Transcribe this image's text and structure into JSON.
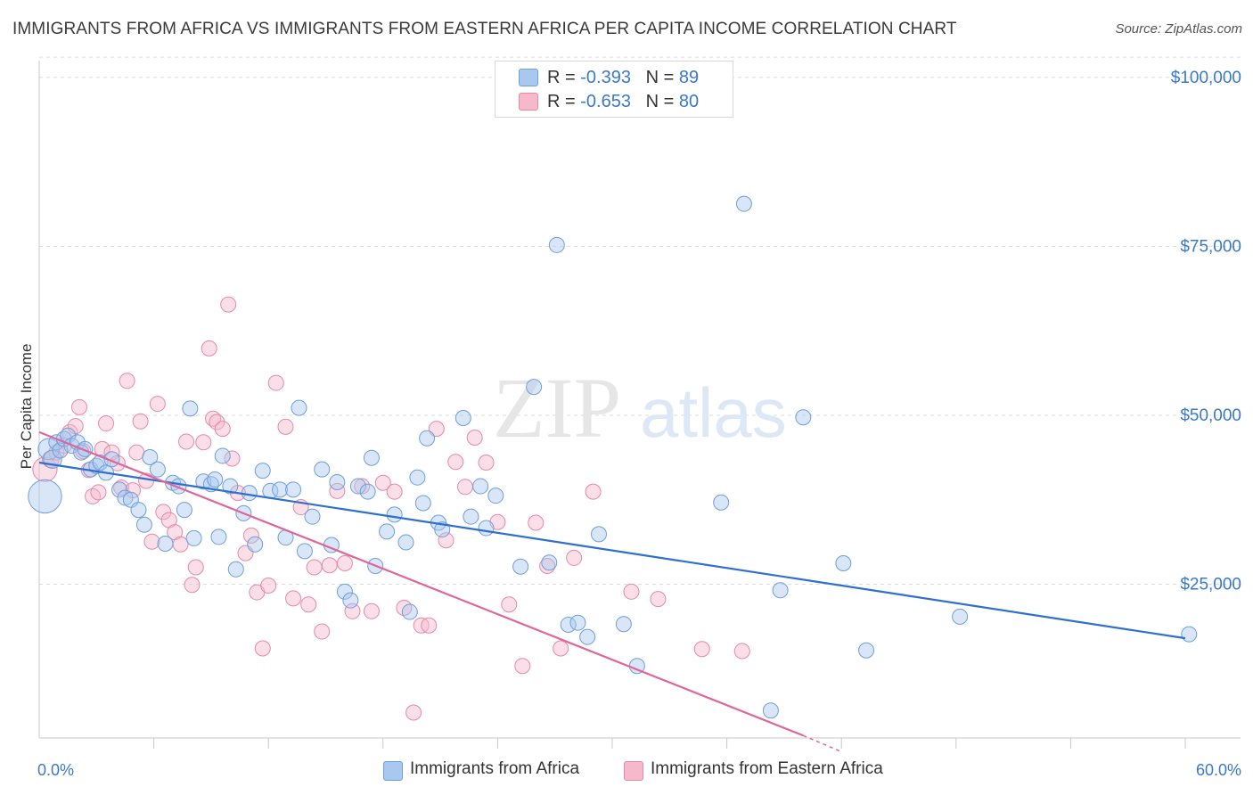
{
  "header": {
    "title": "IMMIGRANTS FROM AFRICA VS IMMIGRANTS FROM EASTERN AFRICA PER CAPITA INCOME CORRELATION CHART",
    "source": "Source: ZipAtlas.com"
  },
  "watermark": {
    "zip": "ZIP",
    "atlas": "atlas"
  },
  "legend": {
    "rows": [
      {
        "r_label": "R =",
        "r_value": "-0.393",
        "n_label": "N =",
        "n_value": "89",
        "color": "#a9c8f0"
      },
      {
        "r_label": "R =",
        "r_value": "-0.653",
        "n_label": "N =",
        "n_value": "80",
        "color": "#f6b9cc"
      }
    ]
  },
  "bottom_legend": {
    "africa": "Immigrants from Africa",
    "eastern": "Immigrants from Eastern Africa"
  },
  "colors": {
    "blue_fill": "#a9c8f0",
    "blue_stroke": "#6e9fd8",
    "blue_line": "#2f6fcf",
    "pink_fill": "#f6b9cc",
    "pink_stroke": "#e48aa7",
    "pink_line": "#e0669a",
    "tick_label": "#3a78c9"
  },
  "chart_data": {
    "type": "scatter",
    "title": "IMMIGRANTS FROM AFRICA VS IMMIGRANTS FROM EASTERN AFRICA PER CAPITA INCOME CORRELATION CHART",
    "xlabel": "",
    "ylabel": "Per Capita Income",
    "xlim": [
      0,
      60
    ],
    "ylim": [
      0,
      105000
    ],
    "x_tick_labels": [
      "0.0%",
      "60.0%"
    ],
    "y_ticks": [
      {
        "value": 25000,
        "label": "$25,000"
      },
      {
        "value": 50000,
        "label": "$50,000"
      },
      {
        "value": 75000,
        "label": "$75,000"
      },
      {
        "value": 100000,
        "label": "$100,000"
      }
    ],
    "grid": "horizontal dashed",
    "legend_position": "top-center",
    "series": [
      {
        "name": "Immigrants from Africa",
        "r": -0.393,
        "n": 89,
        "trend": {
          "x0": 0,
          "y0": 43000,
          "x1": 60,
          "y1": 17000
        },
        "points": [
          [
            0.3,
            38000,
            2.2
          ],
          [
            0.5,
            45000,
            1.4
          ],
          [
            0.7,
            43500,
            1.2
          ],
          [
            0.9,
            46000,
            1
          ],
          [
            1.1,
            44800,
            1
          ],
          [
            1.3,
            46500,
            1
          ],
          [
            1.5,
            47000,
            1
          ],
          [
            1.7,
            45500,
            1
          ],
          [
            2.0,
            46000,
            1
          ],
          [
            2.2,
            44500,
            1
          ],
          [
            2.4,
            45000,
            1
          ],
          [
            2.7,
            42000,
            1
          ],
          [
            3.0,
            42500,
            1
          ],
          [
            3.2,
            43000,
            1
          ],
          [
            3.5,
            41500,
            1
          ],
          [
            3.8,
            43500,
            1
          ],
          [
            4.2,
            39000,
            1
          ],
          [
            4.5,
            37800,
            1
          ],
          [
            4.8,
            37500,
            1
          ],
          [
            5.2,
            36000,
            1
          ],
          [
            5.5,
            33800,
            1
          ],
          [
            5.8,
            43800,
            1
          ],
          [
            6.2,
            42000,
            1
          ],
          [
            6.6,
            31000,
            1
          ],
          [
            7.0,
            40000,
            1
          ],
          [
            7.3,
            39500,
            1
          ],
          [
            7.6,
            36000,
            1
          ],
          [
            7.9,
            51000,
            1
          ],
          [
            8.1,
            31800,
            1
          ],
          [
            8.6,
            40200,
            1
          ],
          [
            9.0,
            39800,
            1
          ],
          [
            9.2,
            40500,
            1
          ],
          [
            9.4,
            32000,
            1
          ],
          [
            9.6,
            44000,
            1
          ],
          [
            10.0,
            39500,
            1
          ],
          [
            10.3,
            27200,
            1
          ],
          [
            10.7,
            35500,
            1
          ],
          [
            11.0,
            38500,
            1
          ],
          [
            11.3,
            30900,
            1
          ],
          [
            11.7,
            41800,
            1
          ],
          [
            12.1,
            38800,
            1
          ],
          [
            12.6,
            39000,
            1
          ],
          [
            12.9,
            31900,
            1
          ],
          [
            13.3,
            39000,
            1
          ],
          [
            13.6,
            51100,
            1
          ],
          [
            13.9,
            29900,
            1
          ],
          [
            14.3,
            35000,
            1
          ],
          [
            14.8,
            42000,
            1
          ],
          [
            15.3,
            30800,
            1
          ],
          [
            15.6,
            40100,
            1
          ],
          [
            16.0,
            23900,
            1
          ],
          [
            16.3,
            22600,
            1
          ],
          [
            16.7,
            39500,
            1
          ],
          [
            17.2,
            38700,
            1
          ],
          [
            17.4,
            43700,
            1
          ],
          [
            17.6,
            27700,
            1
          ],
          [
            18.2,
            32800,
            1
          ],
          [
            18.6,
            35300,
            1
          ],
          [
            19.2,
            31200,
            1
          ],
          [
            19.4,
            20900,
            1
          ],
          [
            19.8,
            40800,
            1
          ],
          [
            20.1,
            37000,
            1
          ],
          [
            20.3,
            46600,
            1
          ],
          [
            20.9,
            34100,
            1
          ],
          [
            21.1,
            33100,
            1
          ],
          [
            22.2,
            49600,
            1
          ],
          [
            22.6,
            35000,
            1
          ],
          [
            23.1,
            39500,
            1
          ],
          [
            23.4,
            33300,
            1
          ],
          [
            23.9,
            38100,
            1
          ],
          [
            25.2,
            27600,
            1
          ],
          [
            25.9,
            54200,
            1
          ],
          [
            26.7,
            28200,
            1
          ],
          [
            27.1,
            75200,
            1
          ],
          [
            27.7,
            19000,
            1
          ],
          [
            28.2,
            19300,
            1
          ],
          [
            28.7,
            17200,
            1
          ],
          [
            29.3,
            32400,
            1
          ],
          [
            30.6,
            19100,
            1
          ],
          [
            31.3,
            12900,
            1
          ],
          [
            35.7,
            37100,
            1
          ],
          [
            36.9,
            81300,
            1
          ],
          [
            38.3,
            6300,
            1
          ],
          [
            38.8,
            24100,
            1
          ],
          [
            40.0,
            49700,
            1
          ],
          [
            42.1,
            28100,
            1
          ],
          [
            43.3,
            15200,
            1
          ],
          [
            48.2,
            20200,
            1
          ],
          [
            60.2,
            17600,
            1
          ]
        ]
      },
      {
        "name": "Immigrants from Eastern Africa",
        "r": -0.653,
        "n": 80,
        "trend": {
          "x0": 0,
          "y0": 47500,
          "x1": 40,
          "y1": 2600,
          "dashed_to_x": 42,
          "dashed_to_y": 200
        },
        "points": [
          [
            0.3,
            42000,
            1.6
          ],
          [
            0.6,
            43500,
            1.1
          ],
          [
            0.9,
            44500,
            1
          ],
          [
            1.3,
            45500,
            1
          ],
          [
            1.6,
            47500,
            1
          ],
          [
            1.9,
            48400,
            1
          ],
          [
            2.1,
            51200,
            1
          ],
          [
            2.3,
            44700,
            1
          ],
          [
            2.6,
            41900,
            1
          ],
          [
            2.8,
            38000,
            1
          ],
          [
            3.1,
            38600,
            1
          ],
          [
            3.3,
            45000,
            1
          ],
          [
            3.5,
            48800,
            1
          ],
          [
            3.8,
            44500,
            1
          ],
          [
            4.1,
            42900,
            1
          ],
          [
            4.3,
            39300,
            1
          ],
          [
            4.6,
            55100,
            1
          ],
          [
            4.9,
            38900,
            1
          ],
          [
            5.1,
            44500,
            1
          ],
          [
            5.3,
            49100,
            1
          ],
          [
            5.6,
            40300,
            1
          ],
          [
            5.9,
            31300,
            1
          ],
          [
            6.2,
            51700,
            1
          ],
          [
            6.5,
            35700,
            1
          ],
          [
            6.8,
            34500,
            1
          ],
          [
            7.1,
            32700,
            1
          ],
          [
            7.4,
            30900,
            1
          ],
          [
            7.7,
            46100,
            1
          ],
          [
            8.0,
            24900,
            1
          ],
          [
            8.2,
            27500,
            1
          ],
          [
            8.6,
            46000,
            1
          ],
          [
            8.9,
            59900,
            1
          ],
          [
            9.1,
            49500,
            1
          ],
          [
            9.3,
            49000,
            1
          ],
          [
            9.6,
            48000,
            1
          ],
          [
            9.9,
            66400,
            1
          ],
          [
            10.1,
            43600,
            1
          ],
          [
            10.4,
            38500,
            1
          ],
          [
            10.8,
            29600,
            1
          ],
          [
            11.1,
            32200,
            1
          ],
          [
            11.4,
            23800,
            1
          ],
          [
            11.7,
            15500,
            1
          ],
          [
            12.0,
            24800,
            1
          ],
          [
            12.4,
            54800,
            1
          ],
          [
            12.9,
            48300,
            1
          ],
          [
            13.3,
            22900,
            1
          ],
          [
            13.7,
            36400,
            1
          ],
          [
            14.1,
            22000,
            1
          ],
          [
            14.4,
            27500,
            1
          ],
          [
            14.8,
            18000,
            1
          ],
          [
            15.2,
            27800,
            1
          ],
          [
            15.6,
            38800,
            1
          ],
          [
            16.0,
            28100,
            1
          ],
          [
            16.4,
            21000,
            1
          ],
          [
            16.9,
            39500,
            1
          ],
          [
            17.4,
            21000,
            1
          ],
          [
            18.0,
            40000,
            1
          ],
          [
            18.6,
            38700,
            1
          ],
          [
            19.1,
            21500,
            1
          ],
          [
            19.6,
            6000,
            1
          ],
          [
            20.0,
            18900,
            1
          ],
          [
            20.4,
            18900,
            1
          ],
          [
            20.8,
            48000,
            1
          ],
          [
            21.3,
            31500,
            1
          ],
          [
            21.8,
            43100,
            1
          ],
          [
            22.3,
            39400,
            1
          ],
          [
            22.8,
            46700,
            1
          ],
          [
            23.4,
            43000,
            1
          ],
          [
            24.0,
            34200,
            1
          ],
          [
            24.6,
            22000,
            1
          ],
          [
            25.3,
            12900,
            1
          ],
          [
            26.0,
            34100,
            1
          ],
          [
            26.6,
            27700,
            1
          ],
          [
            27.3,
            15500,
            1
          ],
          [
            28.0,
            28900,
            1
          ],
          [
            29.0,
            38700,
            1
          ],
          [
            31.0,
            23900,
            1
          ],
          [
            32.4,
            22800,
            1
          ],
          [
            34.7,
            15400,
            1
          ],
          [
            36.8,
            15100,
            1
          ]
        ]
      }
    ]
  }
}
